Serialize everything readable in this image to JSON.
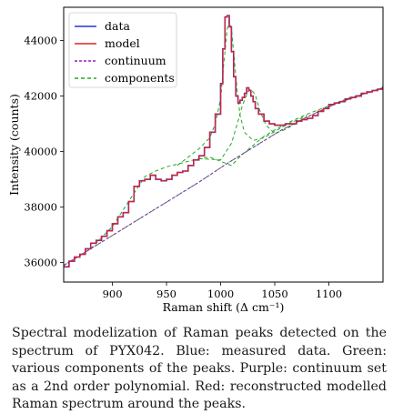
{
  "caption": "Spectral modelization of Raman peaks detected on the spectrum of PYX042. Blue: measured data. Green: various components of the peaks. Purple: continuum set as a 2nd order polynomial. Red: reconstructed modelled Raman spectrum around the peaks.",
  "chart_data": {
    "type": "line",
    "title": "",
    "xlabel": "Raman shift (Δ cm⁻¹)",
    "ylabel": "Intensity (counts)",
    "xlim": [
      855,
      1150
    ],
    "ylim": [
      35300,
      45200
    ],
    "x_ticks": [
      900,
      950,
      1000,
      1050,
      1100
    ],
    "y_ticks": [
      36000,
      38000,
      40000,
      42000,
      44000
    ],
    "legend_position": "top-left",
    "colors": {
      "data": "#2233dd",
      "model": "#e02020",
      "continuum": "#9020c0",
      "components": "#22aa22"
    },
    "series": [
      {
        "name": "data",
        "style": "steps",
        "x": [
          855,
          860,
          865,
          870,
          875,
          880,
          885,
          890,
          895,
          900,
          905,
          910,
          915,
          920,
          925,
          930,
          935,
          940,
          945,
          950,
          955,
          960,
          965,
          970,
          975,
          980,
          985,
          990,
          995,
          1000,
          1002,
          1004,
          1006,
          1008,
          1010,
          1012,
          1014,
          1016,
          1018,
          1020,
          1022,
          1024,
          1026,
          1028,
          1030,
          1032,
          1035,
          1040,
          1045,
          1050,
          1055,
          1060,
          1065,
          1070,
          1075,
          1080,
          1085,
          1090,
          1095,
          1100,
          1105,
          1110,
          1115,
          1120,
          1125,
          1130,
          1135,
          1140,
          1145,
          1150
        ],
        "y": [
          35850,
          36050,
          36200,
          36300,
          36500,
          36700,
          36800,
          36950,
          37150,
          37400,
          37650,
          37800,
          38200,
          38750,
          38950,
          39000,
          39150,
          39000,
          38950,
          39000,
          39150,
          39250,
          39300,
          39500,
          39700,
          39850,
          40150,
          40700,
          41350,
          42450,
          43700,
          44850,
          44900,
          44500,
          43600,
          42700,
          42000,
          41750,
          41850,
          41950,
          42100,
          42300,
          42200,
          42000,
          41800,
          41550,
          41350,
          41100,
          41000,
          40950,
          40950,
          41000,
          41000,
          41100,
          41150,
          41200,
          41300,
          41450,
          41550,
          41700,
          41750,
          41800,
          41900,
          41950,
          42000,
          42100,
          42150,
          42200,
          42250,
          42350
        ]
      },
      {
        "name": "model",
        "style": "line",
        "x": [
          855,
          860,
          865,
          870,
          875,
          880,
          885,
          890,
          895,
          900,
          905,
          910,
          915,
          920,
          925,
          930,
          935,
          940,
          945,
          950,
          955,
          960,
          965,
          970,
          975,
          980,
          985,
          990,
          995,
          1000,
          1002,
          1004,
          1006,
          1008,
          1010,
          1012,
          1014,
          1016,
          1018,
          1020,
          1022,
          1024,
          1026,
          1028,
          1030,
          1032,
          1035,
          1040,
          1045,
          1050,
          1055,
          1060,
          1065,
          1070,
          1075,
          1080,
          1085,
          1090,
          1095,
          1100,
          1105,
          1110,
          1115,
          1120,
          1125,
          1130,
          1135,
          1140,
          1145,
          1150
        ],
        "y": [
          35850,
          36050,
          36200,
          36300,
          36500,
          36700,
          36800,
          36950,
          37150,
          37400,
          37650,
          37800,
          38200,
          38750,
          38950,
          39000,
          39150,
          39000,
          38950,
          39000,
          39150,
          39250,
          39300,
          39500,
          39700,
          39850,
          40150,
          40700,
          41350,
          42450,
          43700,
          44850,
          44900,
          44500,
          43600,
          42700,
          42000,
          41750,
          41850,
          41950,
          42100,
          42300,
          42200,
          42000,
          41800,
          41550,
          41350,
          41100,
          41000,
          40950,
          40950,
          41000,
          41000,
          41100,
          41150,
          41200,
          41300,
          41450,
          41550,
          41700,
          41750,
          41800,
          41900,
          41950,
          42000,
          42100,
          42150,
          42200,
          42250,
          42350
        ]
      },
      {
        "name": "continuum",
        "style": "dashed",
        "x": [
          855,
          880,
          905,
          930,
          955,
          980,
          1005,
          1030,
          1055,
          1080,
          1105,
          1130,
          1150
        ],
        "y": [
          35900,
          36500,
          37100,
          37700,
          38300,
          38900,
          39550,
          40150,
          40750,
          41250,
          41700,
          42050,
          42300
        ]
      },
      {
        "name": "components",
        "style": "dashed",
        "curves": [
          {
            "x": [
              855,
              880,
              905,
              930,
              955,
              980,
              1005,
              1030,
              1055,
              1080,
              1105,
              1130,
              1150
            ],
            "y": [
              35900,
              36500,
              37100,
              37700,
              38300,
              38900,
              39550,
              40150,
              40750,
              41250,
              41700,
              42050,
              42300
            ]
          },
          {
            "x": [
              855,
              880,
              900,
              920,
              930,
              940,
              950,
              960,
              970,
              980,
              990,
              1000,
              1010,
              1020,
              1040,
              1060,
              1080,
              1100,
              1120,
              1150
            ],
            "y": [
              35900,
              36500,
              37300,
              38500,
              39100,
              39300,
              39450,
              39550,
              39650,
              39750,
              39800,
              39650,
              39500,
              39900,
              40550,
              41000,
              41350,
              41650,
              41950,
              42300
            ]
          },
          {
            "x": [
              960,
              970,
              980,
              990,
              995,
              1000,
              1003,
              1006,
              1008,
              1010,
              1012,
              1015,
              1018,
              1022,
              1030,
              1040,
              1060,
              1080
            ],
            "y": [
              39500,
              39800,
              40100,
              40500,
              41000,
              41900,
              43200,
              44400,
              44700,
              44400,
              43600,
              42300,
              41300,
              40700,
              40400,
              40500,
              40950,
              41300
            ]
          },
          {
            "x": [
              980,
              1000,
              1010,
              1015,
              1020,
              1025,
              1028,
              1032,
              1036,
              1042,
              1050,
              1060,
              1080
            ],
            "y": [
              39750,
              39700,
              40300,
              40950,
              41650,
              42150,
              42250,
              42050,
              41500,
              40950,
              40650,
              40800,
              41250
            ]
          }
        ]
      }
    ]
  }
}
